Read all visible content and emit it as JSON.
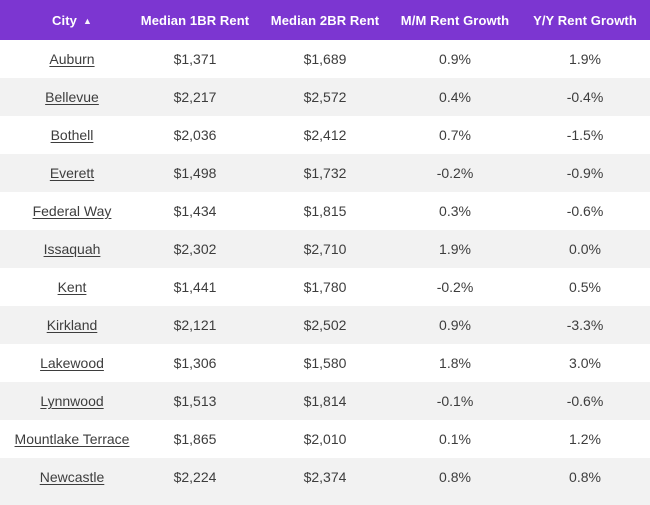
{
  "table": {
    "columns": [
      "City",
      "Median 1BR Rent",
      "Median 2BR Rent",
      "M/M Rent Growth",
      "Y/Y Rent Growth"
    ],
    "sort": {
      "column": "City",
      "direction": "ascending",
      "icon": "▲"
    },
    "rows": [
      {
        "city": "Auburn",
        "rent_1br": "$1,371",
        "rent_2br": "$1,689",
        "mm_growth": "0.9%",
        "yy_growth": "1.9%"
      },
      {
        "city": "Bellevue",
        "rent_1br": "$2,217",
        "rent_2br": "$2,572",
        "mm_growth": "0.4%",
        "yy_growth": "-0.4%"
      },
      {
        "city": "Bothell",
        "rent_1br": "$2,036",
        "rent_2br": "$2,412",
        "mm_growth": "0.7%",
        "yy_growth": "-1.5%"
      },
      {
        "city": "Everett",
        "rent_1br": "$1,498",
        "rent_2br": "$1,732",
        "mm_growth": "-0.2%",
        "yy_growth": "-0.9%"
      },
      {
        "city": "Federal Way",
        "rent_1br": "$1,434",
        "rent_2br": "$1,815",
        "mm_growth": "0.3%",
        "yy_growth": "-0.6%"
      },
      {
        "city": "Issaquah",
        "rent_1br": "$2,302",
        "rent_2br": "$2,710",
        "mm_growth": "1.9%",
        "yy_growth": "0.0%"
      },
      {
        "city": "Kent",
        "rent_1br": "$1,441",
        "rent_2br": "$1,780",
        "mm_growth": "-0.2%",
        "yy_growth": "0.5%"
      },
      {
        "city": "Kirkland",
        "rent_1br": "$2,121",
        "rent_2br": "$2,502",
        "mm_growth": "0.9%",
        "yy_growth": "-3.3%"
      },
      {
        "city": "Lakewood",
        "rent_1br": "$1,306",
        "rent_2br": "$1,580",
        "mm_growth": "1.8%",
        "yy_growth": "3.0%"
      },
      {
        "city": "Lynnwood",
        "rent_1br": "$1,513",
        "rent_2br": "$1,814",
        "mm_growth": "-0.1%",
        "yy_growth": "-0.6%"
      },
      {
        "city": "Mountlake Terrace",
        "rent_1br": "$1,865",
        "rent_2br": "$2,010",
        "mm_growth": "0.1%",
        "yy_growth": "1.2%"
      },
      {
        "city": "Newcastle",
        "rent_1br": "$2,224",
        "rent_2br": "$2,374",
        "mm_growth": "0.8%",
        "yy_growth": "0.8%"
      }
    ]
  },
  "colors": {
    "header_bg": "#7c36d1",
    "header_text": "#ffffff",
    "row_bg": "#ffffff",
    "row_alt_bg": "#f2f2f2",
    "text": "#3d3d3d"
  },
  "chart_data": {
    "type": "table",
    "title": "",
    "columns": [
      "City",
      "Median 1BR Rent",
      "Median 2BR Rent",
      "M/M Rent Growth",
      "Y/Y Rent Growth"
    ],
    "sorted_by": "City ascending",
    "rows": [
      [
        "Auburn",
        1371,
        1689,
        0.9,
        1.9
      ],
      [
        "Bellevue",
        2217,
        2572,
        0.4,
        -0.4
      ],
      [
        "Bothell",
        2036,
        2412,
        0.7,
        -1.5
      ],
      [
        "Everett",
        1498,
        1732,
        -0.2,
        -0.9
      ],
      [
        "Federal Way",
        1434,
        1815,
        0.3,
        -0.6
      ],
      [
        "Issaquah",
        2302,
        2710,
        1.9,
        0.0
      ],
      [
        "Kent",
        1441,
        1780,
        -0.2,
        0.5
      ],
      [
        "Kirkland",
        2121,
        2502,
        0.9,
        -3.3
      ],
      [
        "Lakewood",
        1306,
        1580,
        1.8,
        3.0
      ],
      [
        "Lynnwood",
        1513,
        1814,
        -0.1,
        -0.6
      ],
      [
        "Mountlake Terrace",
        1865,
        2010,
        0.1,
        1.2
      ],
      [
        "Newcastle",
        2224,
        2374,
        0.8,
        0.8
      ]
    ],
    "units": {
      "rent": "USD/month",
      "growth": "percent"
    }
  }
}
